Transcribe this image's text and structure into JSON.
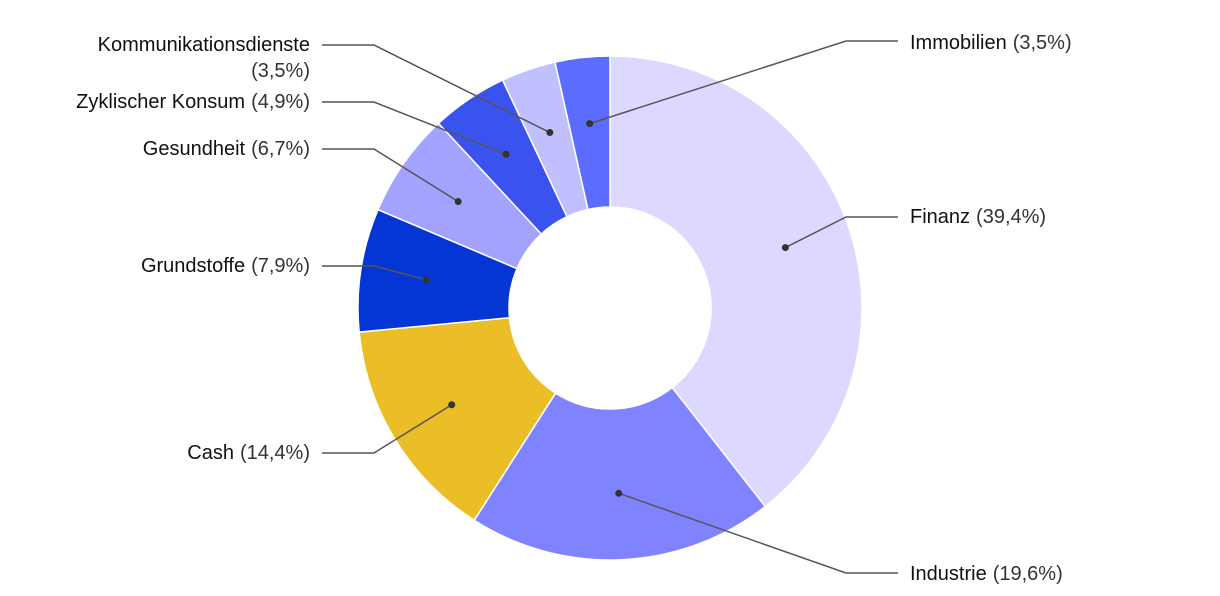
{
  "chart_data": {
    "type": "pie",
    "variant": "donut",
    "slices": [
      {
        "label": "Finanz",
        "value": 39.4,
        "value_label": "(39,4%)",
        "color": "#dcd8ff"
      },
      {
        "label": "Industrie",
        "value": 19.6,
        "value_label": "(19,6%)",
        "color": "#8083ff"
      },
      {
        "label": "Cash",
        "value": 14.4,
        "value_label": "(14,4%)",
        "color": "#ebbd26"
      },
      {
        "label": "Grundstoffe",
        "value": 7.9,
        "value_label": "(7,9%)",
        "color": "#0336d4"
      },
      {
        "label": "Gesundheit",
        "value": 6.7,
        "value_label": "(6,7%)",
        "color": "#a3a3ff"
      },
      {
        "label": "Zyklischer Konsum",
        "value": 4.9,
        "value_label": "(4,9%)",
        "color": "#3a53ef"
      },
      {
        "label": "Kommunikationsdienste",
        "value": 3.5,
        "value_label": "(3,5%)",
        "color": "#c1c0ff"
      },
      {
        "label": "Immobilien",
        "value": 3.5,
        "value_label": "(3,5%)",
        "color": "#5b6dff"
      }
    ]
  }
}
